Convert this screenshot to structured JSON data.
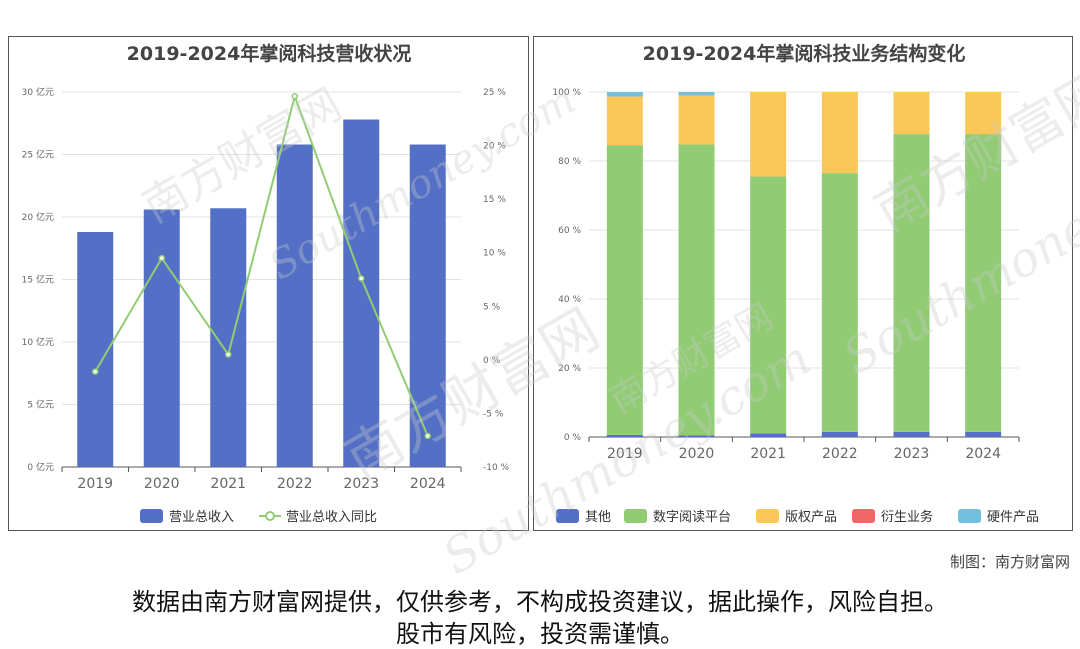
{
  "chart_data": [
    {
      "type": "bar",
      "title": "2019-2024年掌阅科技营收状况",
      "categories": [
        "2019",
        "2020",
        "2021",
        "2022",
        "2023",
        "2024"
      ],
      "series": [
        {
          "name": "营业总收入",
          "type": "bar",
          "axis": "left",
          "color": "#5470c6",
          "values": [
            18.8,
            20.6,
            20.7,
            25.8,
            27.8,
            25.8
          ]
        },
        {
          "name": "营业总收入同比",
          "type": "line",
          "axis": "right",
          "color": "#91cc75",
          "values": [
            -1.1,
            9.5,
            0.5,
            24.6,
            7.6,
            -7.1
          ]
        }
      ],
      "y_left": {
        "ticks": [
          "0 亿元",
          "5 亿元",
          "10 亿元",
          "15 亿元",
          "20 亿元",
          "25 亿元",
          "30 亿元"
        ],
        "lim": [
          0,
          30
        ]
      },
      "y_right": {
        "ticks": [
          "-10 %",
          "-5 %",
          "0 %",
          "5 %",
          "10 %",
          "15 %",
          "20 %",
          "25 %"
        ],
        "lim": [
          -10,
          25
        ]
      },
      "grid": true,
      "legend": "bottom"
    },
    {
      "type": "bar",
      "stacked": true,
      "title": "2019-2024年掌阅科技业务结构变化",
      "categories": [
        "2019",
        "2020",
        "2021",
        "2022",
        "2023",
        "2024"
      ],
      "series": [
        {
          "name": "其他",
          "color": "#5470c6",
          "values": [
            0.6,
            0.5,
            1.0,
            1.5,
            1.5,
            1.5
          ]
        },
        {
          "name": "数字阅读平台",
          "color": "#91cc75",
          "values": [
            84.0,
            84.3,
            74.5,
            75.0,
            86.3,
            86.3
          ]
        },
        {
          "name": "版权产品",
          "color": "#fac858",
          "values": [
            14.1,
            14.2,
            24.5,
            23.5,
            12.2,
            12.2
          ]
        },
        {
          "name": "衍生业务",
          "color": "#ee6666",
          "values": [
            0,
            0,
            0,
            0,
            0,
            0
          ]
        },
        {
          "name": "硬件产品",
          "color": "#73c0de",
          "values": [
            1.3,
            1.0,
            0,
            0,
            0,
            0
          ]
        }
      ],
      "y": {
        "ticks": [
          "0 %",
          "20 %",
          "40 %",
          "60 %",
          "80 %",
          "100 %"
        ],
        "lim": [
          0,
          100
        ]
      },
      "grid": true,
      "legend": "bottom"
    }
  ],
  "footer": {
    "credit": "制图：南方财富网",
    "disclaimer_line1": "数据由南方财富网提供，仅供参考，不构成投资建议，据此操作，风险自担。",
    "disclaimer_line2": "股市有风险，投资需谨慎。"
  },
  "watermark": {
    "text_cn": "南方财富网",
    "text_en": "Southmoney.com"
  }
}
